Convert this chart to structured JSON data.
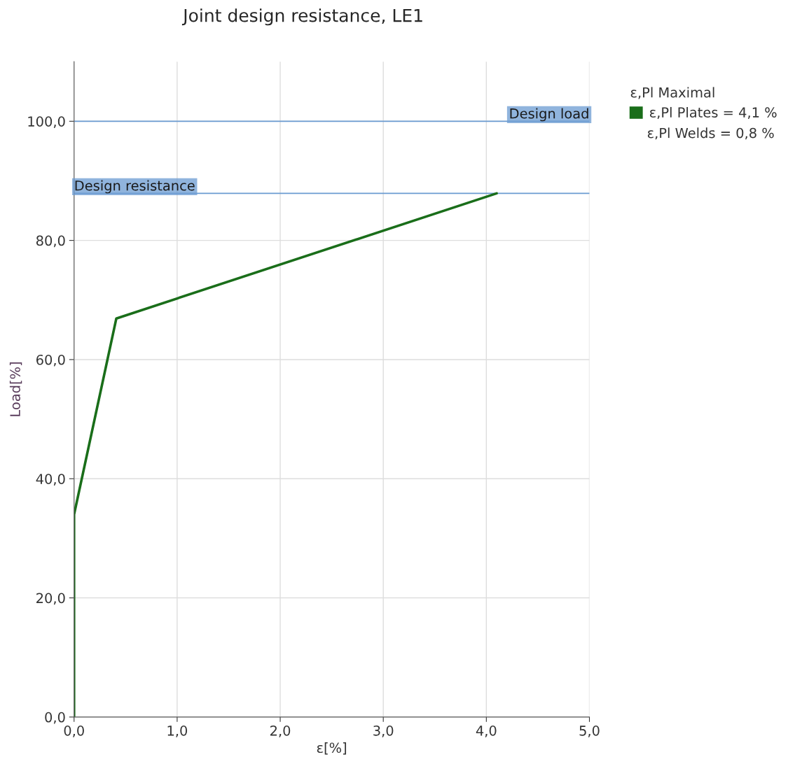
{
  "chart_data": {
    "type": "line",
    "title": "Joint design resistance, LE1",
    "xlabel": "ε[%]",
    "ylabel": "Load[%]",
    "legend_title": "ε,Pl Maximal",
    "x": [
      0,
      0,
      0.41,
      4.1
    ],
    "series": [
      {
        "name": "ε,Pl Plates = 4,1 %",
        "color": "#1a6e1a",
        "values": [
          0,
          34,
          66.9,
          87.9
        ]
      }
    ],
    "annotations": [
      "ε,Pl Welds = 0,8 %"
    ],
    "ref_lines": [
      {
        "axis": "y",
        "value": 100,
        "label": "Design load",
        "color": "#6b9bd1"
      },
      {
        "axis": "y",
        "value": 87.9,
        "label": "Design resistance",
        "color": "#6b9bd1"
      }
    ],
    "xlim": [
      0,
      5
    ],
    "ylim": [
      0,
      110
    ],
    "xticks": [
      {
        "value": 0,
        "label": "0,0"
      },
      {
        "value": 1,
        "label": "1,0"
      },
      {
        "value": 2,
        "label": "2,0"
      },
      {
        "value": 3,
        "label": "3,0"
      },
      {
        "value": 4,
        "label": "4,0"
      },
      {
        "value": 5,
        "label": "5,0"
      }
    ],
    "yticks": [
      {
        "value": 0,
        "label": "0,0"
      },
      {
        "value": 20,
        "label": "20,0"
      },
      {
        "value": 40,
        "label": "40,0"
      },
      {
        "value": 60,
        "label": "60,0"
      },
      {
        "value": 80,
        "label": "80,0"
      },
      {
        "value": 100,
        "label": "100,0"
      }
    ],
    "grid": true,
    "legend": "top right",
    "marker": "none",
    "line_style": "solid"
  }
}
